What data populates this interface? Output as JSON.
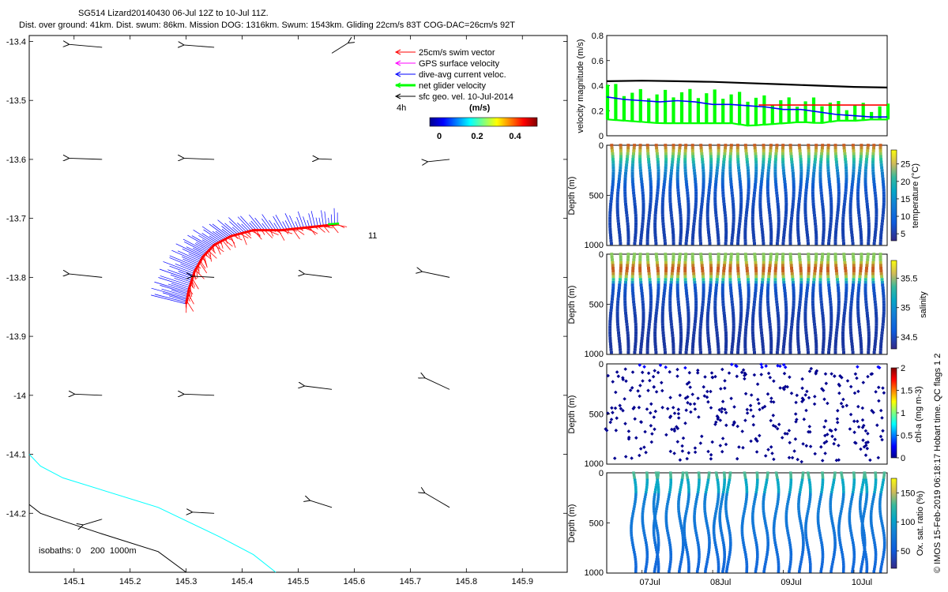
{
  "header": {
    "line1": "SG514 Lizard20140430 06-Jul 12Z to 10-Jul 11Z.",
    "line2": "Dist. over ground: 41km. Dist. swum: 86km. Mission DOG: 1316km. Swum: 1543km. Gliding 22cm/s 83T COG-DAC=26cm/s 92T"
  },
  "colors": {
    "swim_vector": "#ff0000",
    "gps_surface_velocity": "#ff00ff",
    "dive_avg_current": "#0000ff",
    "net_glider_velocity": "#00ff00",
    "sfc_geo_vel": "#000000",
    "isobath_0": "#00ffff",
    "isobath_200": "#000000"
  },
  "chart_data": [
    {
      "type": "scatter",
      "name": "track-map",
      "title": "SG514 Lizard20140430 06-Jul 12Z to 10-Jul 11Z.",
      "xlim": [
        145.02,
        145.98
      ],
      "ylim": [
        -14.3,
        -13.39
      ],
      "xticks": [
        "145.1",
        "145.2",
        "145.3",
        "145.4",
        "145.5",
        "145.6",
        "145.7",
        "145.8",
        "145.9"
      ],
      "xtick_values": [
        145.1,
        145.2,
        145.3,
        145.4,
        145.5,
        145.6,
        145.7,
        145.8,
        145.9
      ],
      "yticks": [
        "-13.4",
        "-13.5",
        "-13.6",
        "-13.7",
        "-13.8",
        "-13.9",
        "-14",
        "-14.1",
        "-14.2"
      ],
      "ytick_values": [
        -13.4,
        -13.5,
        -13.6,
        -13.7,
        -13.8,
        -13.9,
        -14.0,
        -14.1,
        -14.2
      ],
      "legend": [
        {
          "label": "25cm/s swim vector",
          "color_key": "swim_vector"
        },
        {
          "label": "GPS surface velocity",
          "color_key": "gps_surface_velocity"
        },
        {
          "label": "dive-avg current veloc.",
          "color_key": "dive_avg_current"
        },
        {
          "label": "net glider velocity",
          "color_key": "net_glider_velocity"
        },
        {
          "label": "sfc geo. vel. 10-Jul-2014",
          "color_key": "sfc_geo_vel"
        }
      ],
      "legend_scale_label": "4h",
      "colorbar_unit": "(m/s)",
      "colorbar_ticks": [
        "0",
        "0.2",
        "0.4"
      ],
      "track_annotation": "11",
      "isobath_label": "isobaths: 0    200  1000m",
      "geo_vectors": [
        {
          "lon": 145.15,
          "lat": -13.41,
          "u": -0.06,
          "v": 0.005
        },
        {
          "lon": 145.35,
          "lat": -13.41,
          "u": -0.055,
          "v": 0.004
        },
        {
          "lon": 145.56,
          "lat": -13.42,
          "u": 0.03,
          "v": 0.018
        },
        {
          "lon": 145.15,
          "lat": -13.6,
          "u": -0.06,
          "v": 0.002
        },
        {
          "lon": 145.35,
          "lat": -13.6,
          "u": -0.055,
          "v": 0.002
        },
        {
          "lon": 145.56,
          "lat": -13.6,
          "u": -0.025,
          "v": 0.001
        },
        {
          "lon": 145.77,
          "lat": -13.6,
          "u": -0.04,
          "v": -0.004
        },
        {
          "lon": 145.15,
          "lat": -13.8,
          "u": -0.06,
          "v": 0.006
        },
        {
          "lon": 145.35,
          "lat": -13.8,
          "u": -0.04,
          "v": 0.002
        },
        {
          "lon": 145.56,
          "lat": -13.8,
          "u": -0.05,
          "v": 0.006
        },
        {
          "lon": 145.77,
          "lat": -13.8,
          "u": -0.05,
          "v": 0.01
        },
        {
          "lon": 145.15,
          "lat": -14.0,
          "u": -0.05,
          "v": 0.002
        },
        {
          "lon": 145.35,
          "lat": -14.0,
          "u": -0.055,
          "v": 0.002
        },
        {
          "lon": 145.56,
          "lat": -13.99,
          "u": -0.05,
          "v": 0.006
        },
        {
          "lon": 145.77,
          "lat": -13.99,
          "u": -0.045,
          "v": 0.02
        },
        {
          "lon": 145.15,
          "lat": -14.21,
          "u": -0.035,
          "v": -0.01
        },
        {
          "lon": 145.35,
          "lat": -14.2,
          "u": -0.04,
          "v": 0.002
        },
        {
          "lon": 145.56,
          "lat": -14.19,
          "u": -0.04,
          "v": 0.012
        },
        {
          "lon": 145.77,
          "lat": -14.19,
          "u": -0.045,
          "v": 0.025
        }
      ],
      "track": [
        {
          "lon": 145.57,
          "lat": -13.71
        },
        {
          "lon": 145.52,
          "lat": -13.715
        },
        {
          "lon": 145.47,
          "lat": -13.72
        },
        {
          "lon": 145.42,
          "lat": -13.72
        },
        {
          "lon": 145.38,
          "lat": -13.73
        },
        {
          "lon": 145.35,
          "lat": -13.745
        },
        {
          "lon": 145.33,
          "lat": -13.765
        },
        {
          "lon": 145.315,
          "lat": -13.79
        },
        {
          "lon": 145.305,
          "lat": -13.82
        },
        {
          "lon": 145.3,
          "lat": -13.845
        }
      ],
      "isobath_0": [
        [
          145.02,
          -14.1
        ],
        [
          145.04,
          -14.12
        ],
        [
          145.08,
          -14.14
        ],
        [
          145.25,
          -14.19
        ],
        [
          145.36,
          -14.24
        ],
        [
          145.42,
          -14.27
        ],
        [
          145.46,
          -14.3
        ]
      ],
      "isobath_200": [
        [
          145.02,
          -14.185
        ],
        [
          145.04,
          -14.2
        ],
        [
          145.07,
          -14.21
        ],
        [
          145.15,
          -14.235
        ],
        [
          145.25,
          -14.265
        ],
        [
          145.3,
          -14.3
        ]
      ]
    },
    {
      "type": "line",
      "name": "velocity-magnitude",
      "ylabel": "velocity magnitude (m/s)",
      "xlim": [
        6.5,
        10.47
      ],
      "ylim": [
        0,
        0.8
      ],
      "yticks": [
        "0",
        "0.2",
        "0.4",
        "0.6",
        "0.8"
      ],
      "ytick_values": [
        0,
        0.2,
        0.4,
        0.6,
        0.8
      ],
      "series": [
        {
          "name": "black",
          "color": "#000000",
          "x": [
            6.5,
            7.0,
            7.5,
            8.0,
            8.5,
            9.0,
            9.5,
            10.0,
            10.47
          ],
          "y": [
            0.435,
            0.44,
            0.435,
            0.43,
            0.42,
            0.41,
            0.4,
            0.39,
            0.385
          ]
        },
        {
          "name": "red",
          "color": "#ff0000",
          "x": [
            8.65,
            10.47
          ],
          "y": [
            0.245,
            0.245
          ]
        },
        {
          "name": "blue",
          "color": "#0000ff",
          "x": [
            6.5,
            6.75,
            7.0,
            7.25,
            7.5,
            7.75,
            8.0,
            8.25,
            8.5,
            8.75,
            9.0,
            9.25,
            9.5,
            9.75,
            10.0,
            10.25,
            10.47
          ],
          "y": [
            0.31,
            0.29,
            0.28,
            0.27,
            0.28,
            0.27,
            0.25,
            0.25,
            0.24,
            0.23,
            0.21,
            0.21,
            0.19,
            0.17,
            0.16,
            0.15,
            0.15
          ]
        }
      ],
      "green_band": {
        "color": "#00ff00",
        "x": [
          6.5,
          6.75,
          7.0,
          7.25,
          7.5,
          7.75,
          8.0,
          8.25,
          8.5,
          8.75,
          9.0,
          9.25,
          9.5,
          9.75,
          10.0,
          10.25,
          10.47
        ],
        "low": [
          0.13,
          0.12,
          0.11,
          0.1,
          0.1,
          0.1,
          0.1,
          0.1,
          0.08,
          0.09,
          0.1,
          0.11,
          0.1,
          0.12,
          0.12,
          0.13,
          0.13
        ],
        "high": [
          0.4,
          0.34,
          0.33,
          0.32,
          0.34,
          0.33,
          0.33,
          0.32,
          0.3,
          0.28,
          0.27,
          0.26,
          0.27,
          0.24,
          0.23,
          0.22,
          0.22
        ]
      }
    },
    {
      "type": "scatter",
      "name": "temperature-section",
      "ylabel": "Depth (m)",
      "colorbar_label": "temperature (°C)",
      "colorbar_ticks": [
        "5",
        "10",
        "15",
        "20",
        "25"
      ],
      "colorbar_values": [
        5,
        10,
        15,
        20,
        25
      ],
      "clim": [
        3,
        29
      ],
      "yticks": [
        "0",
        "500",
        "1000"
      ],
      "ytick_values": [
        0,
        500,
        1000
      ],
      "ylim": [
        0,
        1000
      ],
      "profiles": 37,
      "profile_depth": 1000,
      "first_profile_time": 6.57,
      "last_profile_time": 10.4,
      "surface_value": 28,
      "deep_value": 4,
      "mode": "temperature"
    },
    {
      "type": "scatter",
      "name": "salinity-section",
      "ylabel": "Depth (m)",
      "colorbar_label": "salinity",
      "colorbar_ticks": [
        "34.5",
        "35",
        "35.5"
      ],
      "colorbar_values": [
        34.5,
        35,
        35.5
      ],
      "clim": [
        34.3,
        35.8
      ],
      "yticks": [
        "0",
        "500",
        "1000"
      ],
      "ytick_values": [
        0,
        500,
        1000
      ],
      "ylim": [
        0,
        1000
      ],
      "profiles": 37,
      "profile_depth": 1000,
      "first_profile_time": 6.57,
      "last_profile_time": 10.4,
      "mode": "salinity"
    },
    {
      "type": "scatter",
      "name": "chla-section",
      "ylabel": "Depth (m)",
      "colorbar_label": "chl-a (mg m-3)",
      "colorbar_ticks": [
        "0",
        "0.5",
        "1",
        "1.5",
        "2"
      ],
      "colorbar_values": [
        0,
        0.5,
        1,
        1.5,
        2
      ],
      "clim": [
        0,
        2
      ],
      "yticks": [
        "0",
        "500",
        "1000"
      ],
      "ytick_values": [
        0,
        500,
        1000
      ],
      "ylim": [
        0,
        1000
      ],
      "profiles": 37,
      "profile_depth": 1000,
      "first_profile_time": 6.57,
      "last_profile_time": 10.4,
      "mode": "chla"
    },
    {
      "type": "scatter",
      "name": "oxygen-section",
      "ylabel": "Depth (m)",
      "colorbar_label": "Ox. sat. ratio (%)",
      "colorbar_ticks": [
        "50",
        "100",
        "150"
      ],
      "colorbar_values": [
        50,
        100,
        150
      ],
      "clim": [
        20,
        175
      ],
      "yticks": [
        "0",
        "500",
        "1000"
      ],
      "ytick_values": [
        0,
        500,
        1000
      ],
      "ylim": [
        0,
        1000
      ],
      "xticks": [
        "07Jul",
        "08Jul",
        "09Jul",
        "10Jul"
      ],
      "xtick_values": [
        7,
        8,
        9,
        10
      ],
      "xlim": [
        6.5,
        10.47
      ],
      "profile_groups": [
        [
          6.88,
          7.2
        ],
        [
          7.2,
          7.55
        ],
        [
          7.63,
          7.92
        ],
        [
          8.05,
          8.22
        ],
        [
          8.45,
          8.75
        ],
        [
          8.9,
          9.25
        ],
        [
          9.35,
          9.7
        ],
        [
          9.82,
          10.12
        ],
        [
          10.15,
          10.4
        ]
      ],
      "profile_depth": 1000,
      "mode": "oxygen"
    }
  ],
  "side_caption": "© IMOS 15-Feb-2019 06:18:17 Hobart time. QC flags 1  2"
}
